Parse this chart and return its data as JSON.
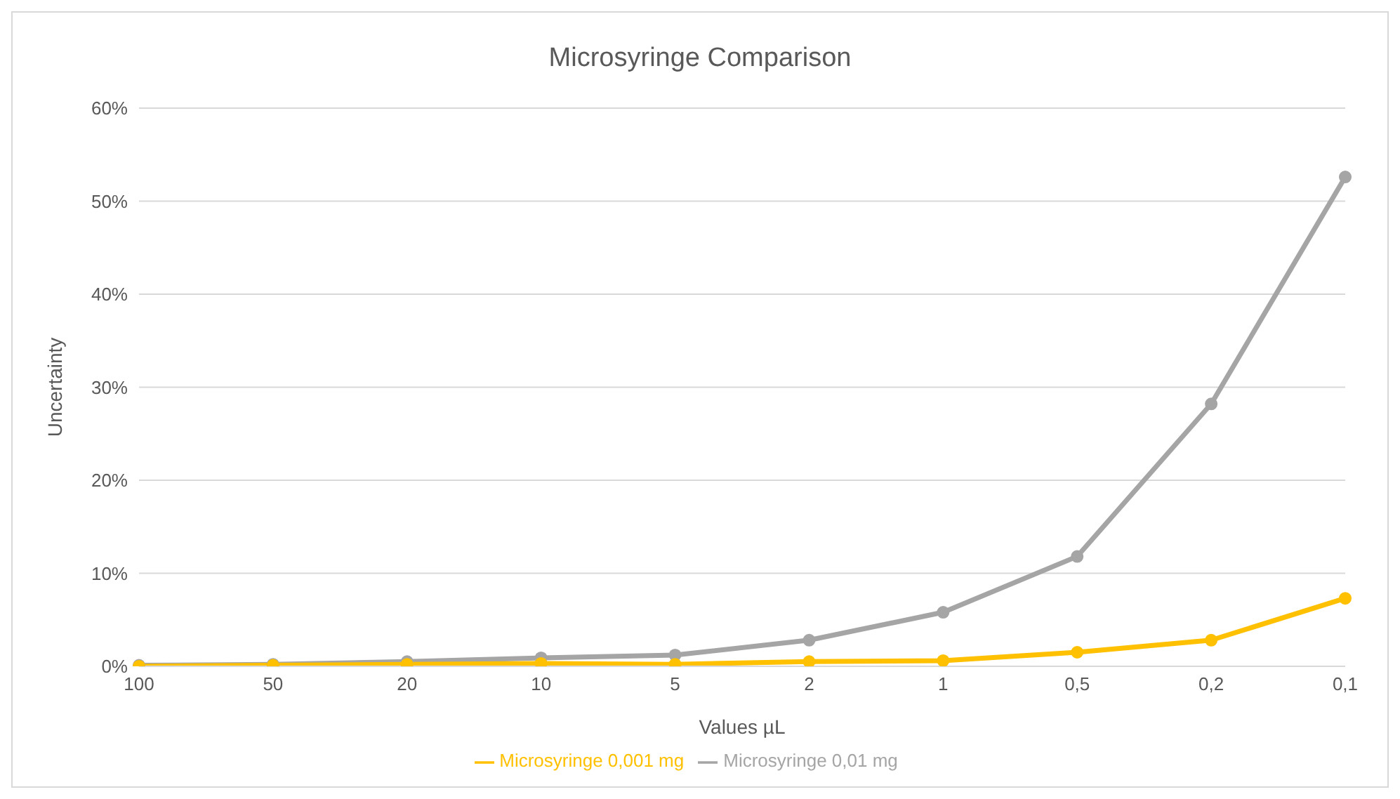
{
  "chart_data": {
    "type": "line",
    "title": "Microsyringe Comparison",
    "xlabel": "Values µL",
    "ylabel": "Uncertainty",
    "categories": [
      "100",
      "50",
      "20",
      "10",
      "5",
      "2",
      "1",
      "0,5",
      "0,2",
      "0,1"
    ],
    "series": [
      {
        "name": "Microsyringe 0,01 mg",
        "color": "#a5a5a5",
        "values": [
          0.1,
          0.2,
          0.5,
          0.9,
          1.2,
          2.8,
          5.8,
          11.8,
          28.2,
          52.6
        ]
      },
      {
        "name": "Microsyringe 0,001 mg",
        "color": "#ffc000",
        "values": [
          0.0,
          0.1,
          0.2,
          0.3,
          0.2,
          0.5,
          0.6,
          1.5,
          2.8,
          7.3
        ]
      }
    ],
    "ylim": [
      0,
      60
    ],
    "yticks": [
      {
        "value": 0,
        "label": "0%"
      },
      {
        "value": 10,
        "label": "10%"
      },
      {
        "value": 20,
        "label": "20%"
      },
      {
        "value": 30,
        "label": "30%"
      },
      {
        "value": 40,
        "label": "40%"
      },
      {
        "value": 50,
        "label": "50%"
      },
      {
        "value": 60,
        "label": "60%"
      }
    ],
    "grid": "y",
    "legend": "bottom",
    "marker": "circle",
    "line_style": "solid"
  }
}
